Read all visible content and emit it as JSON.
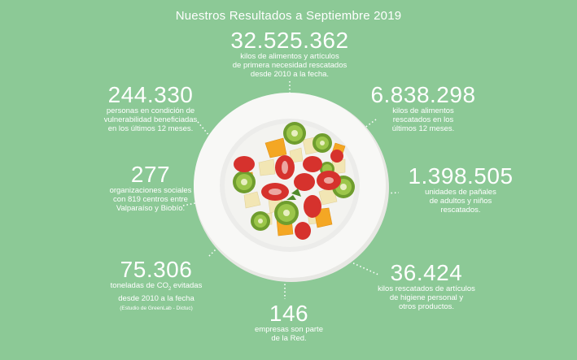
{
  "title": "Nuestros Resultados a Septiembre 2019",
  "stats": {
    "food_total": {
      "value": "32.525.362",
      "line1": "kilos de alimentos y artículos",
      "line2": "de primera necesidad rescatados",
      "line3": "desde 2010 a la fecha."
    },
    "people": {
      "value": "244.330",
      "line1": "personas en condición de",
      "line2": "vulnerabilidad beneficiadas",
      "line3": "en los últimos 12 meses."
    },
    "food_12m": {
      "value": "6.838.298",
      "line1": "kilos de alimentos",
      "line2": "rescatados en los",
      "line3": "últimos 12 meses."
    },
    "orgs": {
      "value": "277",
      "line1": "organizaciones sociales",
      "line2": "con 819 centros entre",
      "line3": "Valparaíso y Biobío."
    },
    "diapers": {
      "value": "1.398.505",
      "line1": "unidades de pañales",
      "line2": "de adultos y niños",
      "line3": "rescatados."
    },
    "co2": {
      "value": "75.306",
      "line1_a": "toneladas de CO",
      "line1_sub": "2",
      "line1_b": " evitadas",
      "line2": "desde 2010 a la fecha",
      "note": "(Estudio de GreenLab - Dictuc)"
    },
    "hygiene": {
      "value": "36.424",
      "line1": "kilos rescatados de artículos",
      "line2": "de higiene personal y",
      "line3": "otros productos."
    },
    "companies": {
      "value": "146",
      "line1": "empresas son parte",
      "line2": "de la Red."
    }
  },
  "colors": {
    "background": "#8cc996",
    "text": "#ffffff",
    "plate": "#f7f7f5",
    "strawberry": "#d8332f",
    "kiwi": "#7fae3a",
    "orange": "#f3a623",
    "apple": "#f3e7b5"
  }
}
